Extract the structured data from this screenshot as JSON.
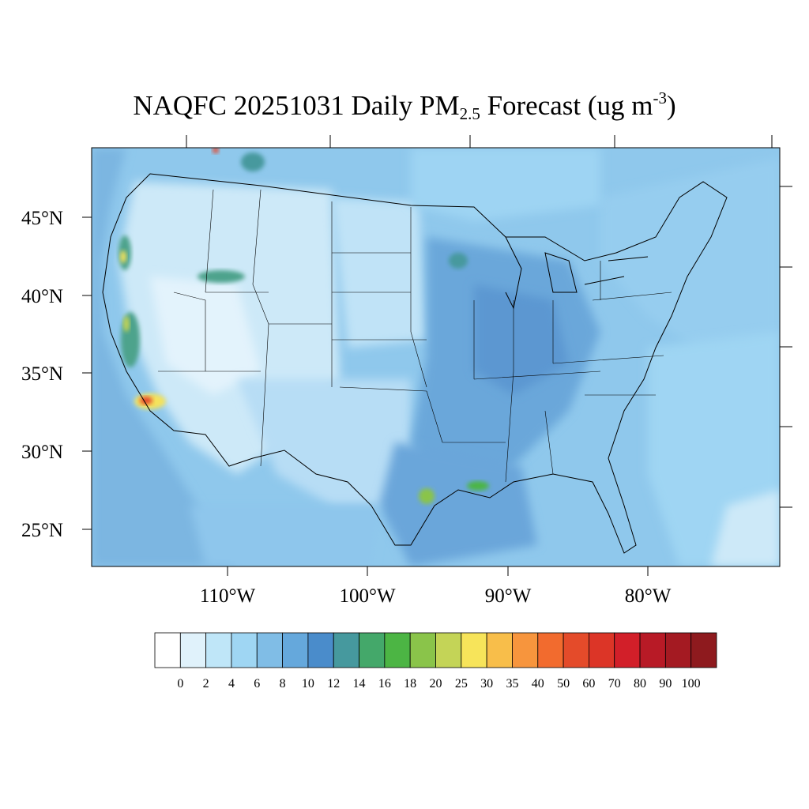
{
  "title": {
    "prefix": "NAQFC 20251031 Daily PM",
    "subscript": "2.5",
    "middle": " Forecast (ug m",
    "superscript": "-3",
    "suffix": ")"
  },
  "map": {
    "lat_labels": [
      "45°N",
      "40°N",
      "35°N",
      "30°N",
      "25°N"
    ],
    "lon_labels": [
      "110°W",
      "100°W",
      "90°W",
      "80°W"
    ],
    "lat_values": [
      45,
      40,
      35,
      30,
      25
    ],
    "lon_values": [
      -110,
      -100,
      -90,
      -80
    ]
  },
  "colorbar": {
    "labels": [
      "0",
      "2",
      "4",
      "6",
      "8",
      "10",
      "12",
      "14",
      "16",
      "18",
      "20",
      "25",
      "30",
      "35",
      "40",
      "50",
      "60",
      "70",
      "80",
      "90",
      "100"
    ],
    "colors": [
      "#ffffff",
      "#e0f2fb",
      "#bfe6f8",
      "#9fd6f3",
      "#80bde6",
      "#65a8dc",
      "#4a8ccb",
      "#46999e",
      "#44a86a",
      "#4cb544",
      "#8ac44a",
      "#c4d457",
      "#f7e45a",
      "#f8be4a",
      "#f7953d",
      "#f26b2e",
      "#e44b2a",
      "#dc3527",
      "#d21f29",
      "#b81a26",
      "#a41a22",
      "#8e1a1e"
    ]
  },
  "field_colors": {
    "ocean_west": "#7bb6e1",
    "land_light": "#cde9f8",
    "land_pale": "#e3f3fc",
    "land_mid": "#a6d6f3",
    "east_dark": "#6ba7da",
    "midwest_dark": "#5c97d1",
    "coast_green": "#4da38c",
    "hotspot_yellow": "#f4e25c",
    "hotspot_orange": "#f6a93f",
    "hotspot_red": "#e5452b",
    "border_line": "#000000"
  }
}
